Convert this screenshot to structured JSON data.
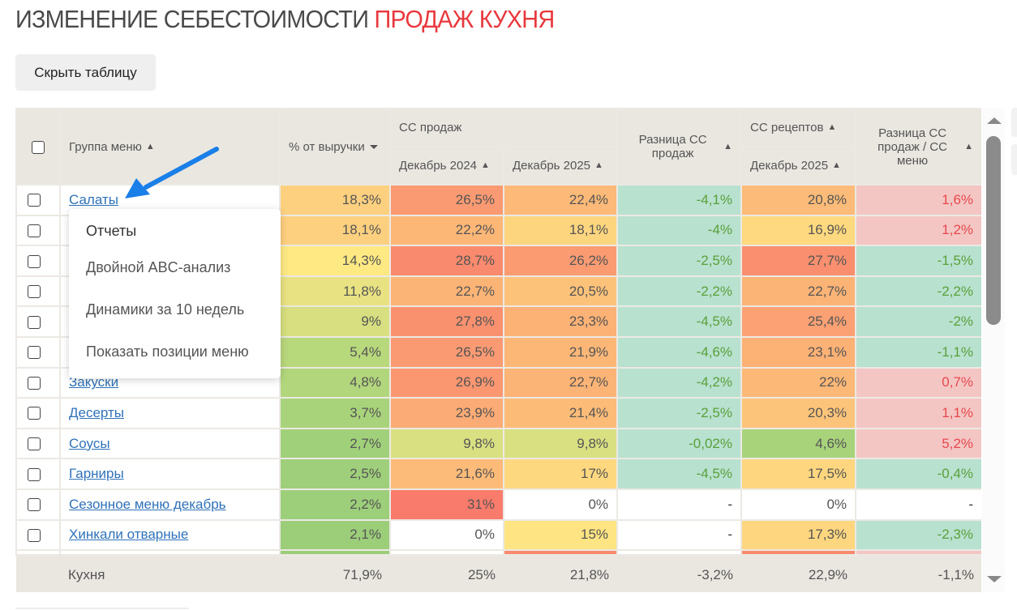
{
  "page": {
    "title_main": "ИЗМЕНЕНИЕ СЕБЕСТОИМОСТИ",
    "title_accent": "ПРОДАЖ КУХНЯ",
    "hide_table_label": "Скрыть таблицу"
  },
  "colors": {
    "accent": "#e8383d",
    "link": "#2f72b8",
    "positive_diff": "#e8484c",
    "negative_diff": "#5aa03a",
    "header_bg": "#eae7e1",
    "annotation_arrow": "#1a7fe8"
  },
  "table": {
    "headers": {
      "group": "Группа меню",
      "revenue_pct": "% от выручки",
      "cc_sales": "СС продаж",
      "dec2024": "Декабрь 2024",
      "dec2025": "Декабрь 2025",
      "diff_cc_sales": "Разница СС продаж",
      "cc_recipes": "СС рецептов",
      "cc_recipes_dec2025": "Декабрь 2025",
      "diff_sales_menu": "Разница СС продаж / СС меню"
    },
    "rows": [
      {
        "name": "Салаты",
        "revenue": "18,3%",
        "dec2024": "26,5%",
        "dec2025": "22,4%",
        "diff": "-4,1%",
        "recipes": "20,8%",
        "diff2": "1,6%",
        "c_rev": "#fdd07f",
        "c_24": "#fa9a72",
        "c_25": "#fcb978",
        "c_diff": "#b8e1cf",
        "c_rec": "#fcbb78",
        "c_d2": "#f3c6c4",
        "t_diff": "neg",
        "t_d2": "pos"
      },
      {
        "name": "",
        "revenue": "18,1%",
        "dec2024": "22,2%",
        "dec2025": "18,1%",
        "diff": "-4%",
        "recipes": "16,9%",
        "diff2": "1,2%",
        "c_rev": "#fdd07f",
        "c_24": "#fcb777",
        "c_25": "#fdd57f",
        "c_diff": "#b8e1cf",
        "c_rec": "#fed97f",
        "c_d2": "#f3c6c4",
        "t_diff": "neg",
        "t_d2": "pos"
      },
      {
        "name": "",
        "revenue": "14,3%",
        "dec2024": "28,7%",
        "dec2025": "26,2%",
        "diff": "-2,5%",
        "recipes": "27,7%",
        "diff2": "-1,5%",
        "c_rev": "#fee983",
        "c_24": "#f98a6d",
        "c_25": "#fa9b72",
        "c_diff": "#b8e1cf",
        "c_rec": "#f98f6e",
        "c_d2": "#b8e1cf",
        "t_diff": "neg",
        "t_d2": "neg"
      },
      {
        "name": "",
        "revenue": "11,8%",
        "dec2024": "22,7%",
        "dec2025": "20,5%",
        "diff": "-2,2%",
        "recipes": "22,7%",
        "diff2": "-2,2%",
        "c_rev": "#e9e283",
        "c_24": "#fcb476",
        "c_25": "#fcc27a",
        "c_diff": "#b8e1cf",
        "c_rec": "#fcb476",
        "c_d2": "#b8e1cf",
        "t_diff": "neg",
        "t_d2": "neg"
      },
      {
        "name": "",
        "revenue": "9%",
        "dec2024": "27,8%",
        "dec2025": "23,3%",
        "diff": "-4,5%",
        "recipes": "25,4%",
        "diff2": "-2%",
        "c_rev": "#d7df80",
        "c_24": "#f9916f",
        "c_25": "#fcb175",
        "c_diff": "#b8e1cf",
        "c_rec": "#fba173",
        "c_d2": "#b8e1cf",
        "t_diff": "neg",
        "t_d2": "neg"
      },
      {
        "name": "",
        "revenue": "5,4%",
        "dec2024": "26,5%",
        "dec2025": "21,9%",
        "diff": "-4,6%",
        "recipes": "23,1%",
        "diff2": "-1,1%",
        "c_rev": "#b8d87c",
        "c_24": "#fa9a72",
        "c_25": "#fcb777",
        "c_diff": "#b8e1cf",
        "c_rec": "#fcb175",
        "c_d2": "#b8e1cf",
        "t_diff": "neg",
        "t_d2": "neg"
      },
      {
        "name": "Закуски",
        "revenue": "4,8%",
        "dec2024": "26,9%",
        "dec2025": "22,7%",
        "diff": "-4,2%",
        "recipes": "22%",
        "diff2": "0,7%",
        "c_rev": "#b2d67c",
        "c_24": "#fa9771",
        "c_25": "#fcb476",
        "c_diff": "#b8e1cf",
        "c_rec": "#fcb877",
        "c_d2": "#f3c6c4",
        "t_diff": "neg",
        "t_d2": "pos"
      },
      {
        "name": "Десерты",
        "revenue": "3,7%",
        "dec2024": "23,9%",
        "dec2025": "21,4%",
        "diff": "-2,5%",
        "recipes": "20,3%",
        "diff2": "1,1%",
        "c_rev": "#a9d37b",
        "c_24": "#fbab75",
        "c_25": "#fcbc78",
        "c_diff": "#b8e1cf",
        "c_rec": "#fcc47a",
        "c_d2": "#f3c6c4",
        "t_diff": "neg",
        "t_d2": "pos"
      },
      {
        "name": "Соусы",
        "revenue": "2,7%",
        "dec2024": "9,8%",
        "dec2025": "9,8%",
        "diff": "-0,02%",
        "recipes": "4,6%",
        "diff2": "5,2%",
        "c_rev": "#a1d07a",
        "c_24": "#d9e082",
        "c_25": "#d9e082",
        "c_diff": "#b8e1cf",
        "c_rec": "#a8d37b",
        "c_d2": "#f3c6c4",
        "t_diff": "neg",
        "t_d2": "pos"
      },
      {
        "name": "Гарниры",
        "revenue": "2,5%",
        "dec2024": "21,6%",
        "dec2025": "17%",
        "diff": "-4,5%",
        "recipes": "17,5%",
        "diff2": "-0,4%",
        "c_rev": "#9fcf7a",
        "c_24": "#fcbb78",
        "c_25": "#fed87f",
        "c_diff": "#b8e1cf",
        "c_rec": "#fdd67f",
        "c_d2": "#b8e1cf",
        "t_diff": "neg",
        "t_d2": "neg"
      },
      {
        "name": "Сезонное меню декабрь",
        "revenue": "2,2%",
        "dec2024": "31%",
        "dec2025": "0%",
        "diff": "-",
        "recipes": "0%",
        "diff2": "-",
        "c_rev": "#9dce7a",
        "c_24": "#f87b6b",
        "c_25": "#ffffff",
        "c_diff": "#ffffff",
        "c_rec": "#ffffff",
        "c_d2": "#ffffff",
        "t_diff": "plain",
        "t_d2": "plain"
      },
      {
        "name": "Хинкали отварные",
        "revenue": "2,1%",
        "dec2024": "0%",
        "dec2025": "15%",
        "diff": "-",
        "recipes": "17,3%",
        "diff2": "-2,3%",
        "c_rev": "#9ccd79",
        "c_24": "#ffffff",
        "c_25": "#fee482",
        "c_diff": "#ffffff",
        "c_rec": "#fdd67f",
        "c_d2": "#b8e1cf",
        "t_diff": "plain",
        "t_d2": "neg"
      }
    ],
    "footer": {
      "name": "Кухня",
      "revenue": "71,9%",
      "dec2024": "25%",
      "dec2025": "21,8%",
      "diff": "-3,2%",
      "recipes": "22,9%",
      "diff2": "-1,1%"
    }
  },
  "dropdown": {
    "items": [
      "Отчеты",
      "Двойной ABC-анализ",
      "Динамики за 10 недель",
      "Показать позиции меню"
    ]
  }
}
